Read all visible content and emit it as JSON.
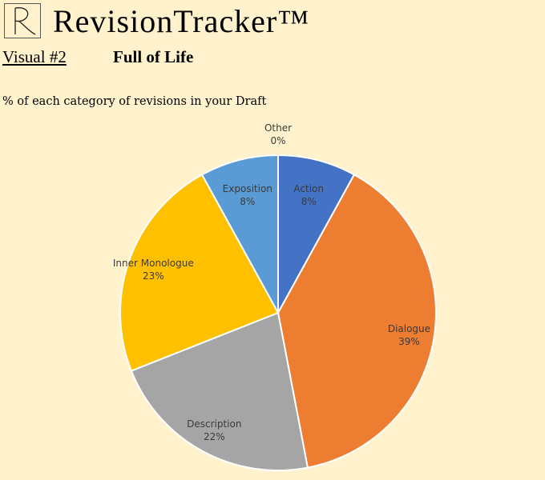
{
  "header": {
    "title": "RevisionTracker™",
    "visual_label": "Visual #2",
    "visual_name": "Full of Life"
  },
  "chart_data": {
    "type": "pie",
    "title": "% of each category of revisions in your Draft",
    "start_angle_deg": 0,
    "direction": "clockwise",
    "slices": [
      {
        "label": "Action",
        "value": 8,
        "display": "8%",
        "color": "#4472C4"
      },
      {
        "label": "Dialogue",
        "value": 39,
        "display": "39%",
        "color": "#ED7D31"
      },
      {
        "label": "Description",
        "value": 22,
        "display": "22%",
        "color": "#A5A5A5"
      },
      {
        "label": "Inner Monologue",
        "value": 23,
        "display": "23%",
        "color": "#FFC000"
      },
      {
        "label": "Exposition",
        "value": 8,
        "display": "8%",
        "color": "#5B9BD5"
      },
      {
        "label": "Other",
        "value": 0,
        "display": "0%",
        "color": "#70AD47"
      }
    ]
  }
}
